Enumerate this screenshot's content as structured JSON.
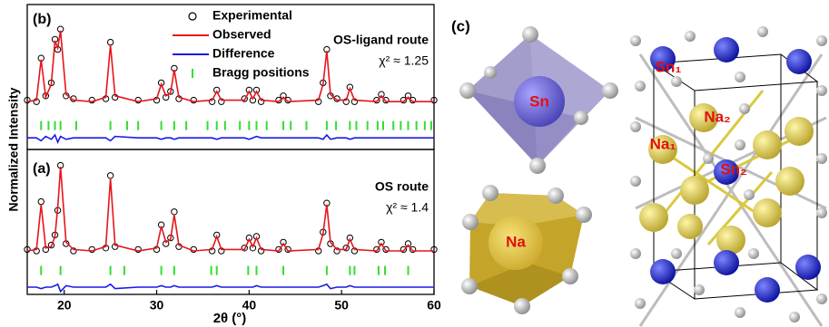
{
  "figure": {
    "ylabel": "Normalized Intensity",
    "xlabel": "2θ (°)"
  },
  "chart_data": [
    {
      "type": "line",
      "panel": "(b)",
      "route": "OS-ligand route",
      "chi2": "χ² ≈ 1.25",
      "legend": "top-center",
      "xlim": [
        16,
        60
      ],
      "ylim": [
        0,
        1
      ],
      "x": [
        16,
        17,
        17.5,
        18,
        18.6,
        19,
        19.3,
        19.6,
        20.2,
        21,
        23,
        24.5,
        25,
        25.5,
        28,
        30,
        30.5,
        31,
        31.5,
        31.9,
        32.4,
        34,
        36,
        36.5,
        37,
        39.5,
        40,
        40.4,
        40.8,
        41.3,
        43.2,
        43.7,
        44.2,
        47.5,
        48,
        48.4,
        48.8,
        49.5,
        50.5,
        50.9,
        51.4,
        53.8,
        54.3,
        54.8,
        56.7,
        57.2,
        57.7,
        60
      ],
      "series": [
        {
          "name": "Experimental",
          "kind": "scatter",
          "color": "#000000",
          "values": [
            0.34,
            0.33,
            0.63,
            0.37,
            0.46,
            0.76,
            0.69,
            0.83,
            0.37,
            0.35,
            0.34,
            0.35,
            0.74,
            0.36,
            0.34,
            0.34,
            0.46,
            0.36,
            0.4,
            0.56,
            0.35,
            0.34,
            0.33,
            0.41,
            0.33,
            0.35,
            0.41,
            0.34,
            0.41,
            0.33,
            0.34,
            0.37,
            0.34,
            0.33,
            0.46,
            0.69,
            0.37,
            0.35,
            0.33,
            0.43,
            0.33,
            0.34,
            0.38,
            0.34,
            0.34,
            0.37,
            0.34,
            0.34
          ]
        },
        {
          "name": "Observed",
          "kind": "line",
          "color": "#e8141b",
          "values": [
            0.33,
            0.34,
            0.62,
            0.36,
            0.45,
            0.75,
            0.7,
            0.82,
            0.38,
            0.34,
            0.33,
            0.36,
            0.72,
            0.37,
            0.33,
            0.35,
            0.45,
            0.37,
            0.39,
            0.55,
            0.36,
            0.33,
            0.34,
            0.4,
            0.34,
            0.34,
            0.4,
            0.35,
            0.4,
            0.34,
            0.33,
            0.36,
            0.33,
            0.34,
            0.45,
            0.68,
            0.38,
            0.34,
            0.34,
            0.42,
            0.34,
            0.33,
            0.37,
            0.33,
            0.33,
            0.36,
            0.33,
            0.33
          ]
        },
        {
          "name": "Difference",
          "kind": "line",
          "color": "#1a1ae6",
          "values": [
            0.08,
            0.08,
            0.06,
            0.09,
            0.07,
            0.1,
            0.05,
            0.09,
            0.07,
            0.08,
            0.08,
            0.08,
            0.06,
            0.09,
            0.08,
            0.08,
            0.07,
            0.08,
            0.08,
            0.07,
            0.08,
            0.08,
            0.08,
            0.07,
            0.08,
            0.08,
            0.07,
            0.08,
            0.09,
            0.08,
            0.08,
            0.08,
            0.08,
            0.08,
            0.07,
            0.1,
            0.07,
            0.08,
            0.08,
            0.07,
            0.08,
            0.08,
            0.08,
            0.08,
            0.08,
            0.08,
            0.08,
            0.08
          ]
        },
        {
          "name": "Bragg positions",
          "kind": "ticks",
          "color": "#33dd33",
          "x": [
            17.5,
            18.3,
            19.0,
            19.6,
            21.3,
            25.0,
            26.8,
            28.0,
            30.5,
            31.9,
            33.2,
            35.5,
            36.5,
            37.4,
            39.0,
            40.0,
            40.8,
            41.9,
            43.7,
            44.5,
            46.2,
            48.4,
            49.4,
            50.9,
            51.6,
            52.8,
            53.9,
            54.5,
            55.6,
            56.4,
            57.2,
            58.1,
            59.0,
            59.7
          ]
        }
      ]
    },
    {
      "type": "line",
      "panel": "(a)",
      "route": "OS route",
      "chi2": "χ² ≈ 1.4",
      "xlim": [
        16,
        60
      ],
      "ylim": [
        0,
        1
      ],
      "xticks": [
        20,
        30,
        40,
        50,
        60
      ],
      "x": [
        16,
        17,
        17.5,
        18,
        18.6,
        19,
        19.3,
        19.6,
        20.2,
        21,
        23,
        24.5,
        25,
        25.5,
        28,
        30,
        30.5,
        31,
        31.5,
        31.9,
        32.4,
        34,
        36,
        36.5,
        37,
        39.5,
        40,
        40.4,
        40.8,
        41.3,
        43.2,
        43.7,
        44.2,
        47.5,
        48,
        48.4,
        48.8,
        49.5,
        50.5,
        50.9,
        51.4,
        53.8,
        54.3,
        54.8,
        56.7,
        57.2,
        57.7,
        60
      ],
      "series": [
        {
          "kind": "scatter",
          "color": "#000000",
          "values": [
            0.31,
            0.3,
            0.64,
            0.31,
            0.34,
            0.41,
            0.58,
            0.89,
            0.35,
            0.3,
            0.31,
            0.32,
            0.82,
            0.33,
            0.31,
            0.31,
            0.48,
            0.35,
            0.39,
            0.57,
            0.33,
            0.31,
            0.3,
            0.41,
            0.3,
            0.32,
            0.39,
            0.32,
            0.4,
            0.3,
            0.31,
            0.36,
            0.31,
            0.3,
            0.43,
            0.63,
            0.35,
            0.3,
            0.32,
            0.39,
            0.3,
            0.31,
            0.36,
            0.31,
            0.31,
            0.35,
            0.31,
            0.31
          ]
        },
        {
          "kind": "line",
          "color": "#e8141b",
          "values": [
            0.3,
            0.31,
            0.62,
            0.32,
            0.33,
            0.4,
            0.6,
            0.88,
            0.36,
            0.31,
            0.3,
            0.33,
            0.8,
            0.34,
            0.3,
            0.32,
            0.47,
            0.36,
            0.38,
            0.55,
            0.34,
            0.3,
            0.31,
            0.4,
            0.31,
            0.31,
            0.38,
            0.33,
            0.39,
            0.31,
            0.3,
            0.35,
            0.3,
            0.31,
            0.42,
            0.62,
            0.36,
            0.31,
            0.31,
            0.38,
            0.31,
            0.3,
            0.35,
            0.3,
            0.3,
            0.34,
            0.3,
            0.3
          ]
        },
        {
          "kind": "line",
          "color": "#1a1ae6",
          "values": [
            0.05,
            0.05,
            0.04,
            0.05,
            0.05,
            0.06,
            0.07,
            0.02,
            0.06,
            0.05,
            0.05,
            0.05,
            0.07,
            0.04,
            0.05,
            0.05,
            0.06,
            0.05,
            0.05,
            0.06,
            0.05,
            0.05,
            0.05,
            0.06,
            0.05,
            0.05,
            0.05,
            0.05,
            0.06,
            0.05,
            0.05,
            0.05,
            0.05,
            0.05,
            0.06,
            0.07,
            0.04,
            0.05,
            0.05,
            0.06,
            0.05,
            0.05,
            0.05,
            0.05,
            0.05,
            0.05,
            0.05,
            0.05
          ]
        },
        {
          "kind": "ticks",
          "color": "#33dd33",
          "x": [
            17.5,
            19.6,
            25.0,
            26.5,
            30.5,
            31.9,
            35.9,
            36.5,
            39.9,
            40.8,
            43.7,
            48.4,
            50.9,
            51.4,
            54.0,
            54.7,
            57.2
          ]
        }
      ]
    }
  ],
  "structure": {
    "panel": "(c)",
    "sn": "Sn",
    "na": "Na",
    "sites": [
      "Sn₁",
      "Na₂",
      "Na₁",
      "Sn₂"
    ]
  }
}
